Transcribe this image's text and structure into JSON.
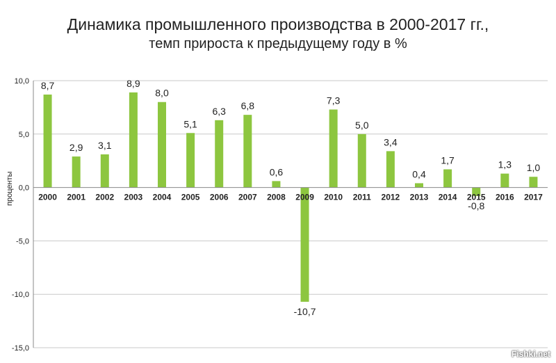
{
  "chart_data": {
    "type": "bar",
    "title": "Динамика промышленного производства в 2000-2017 гг.,",
    "subtitle": "темп прироста к предыдущему году в %",
    "ylabel": "проценты",
    "xlabel": "",
    "ylim": [
      -15,
      10
    ],
    "yticks": [
      "10,0",
      "5,0",
      "0,0",
      "-5,0",
      "-10,0",
      "-15,0"
    ],
    "grid": true,
    "legend": "none",
    "bar_color": "#8dc63f",
    "categories": [
      "2000",
      "2001",
      "2002",
      "2003",
      "2004",
      "2005",
      "2006",
      "2007",
      "2008",
      "2009",
      "2010",
      "2011",
      "2012",
      "2013",
      "2014",
      "2015",
      "2016",
      "2017"
    ],
    "values": [
      8.7,
      2.9,
      3.1,
      8.9,
      8.0,
      5.1,
      6.3,
      6.8,
      0.6,
      -10.7,
      7.3,
      5.0,
      3.4,
      0.4,
      1.7,
      -0.8,
      1.3,
      1.0
    ],
    "value_labels": [
      "8,7",
      "2,9",
      "3,1",
      "8,9",
      "8,0",
      "5,1",
      "6,3",
      "6,8",
      "0,6",
      "-10,7",
      "7,3",
      "5,0",
      "3,4",
      "0,4",
      "1,7",
      "-0,8",
      "1,3",
      "1,0"
    ]
  },
  "watermark": "Fishki.net"
}
